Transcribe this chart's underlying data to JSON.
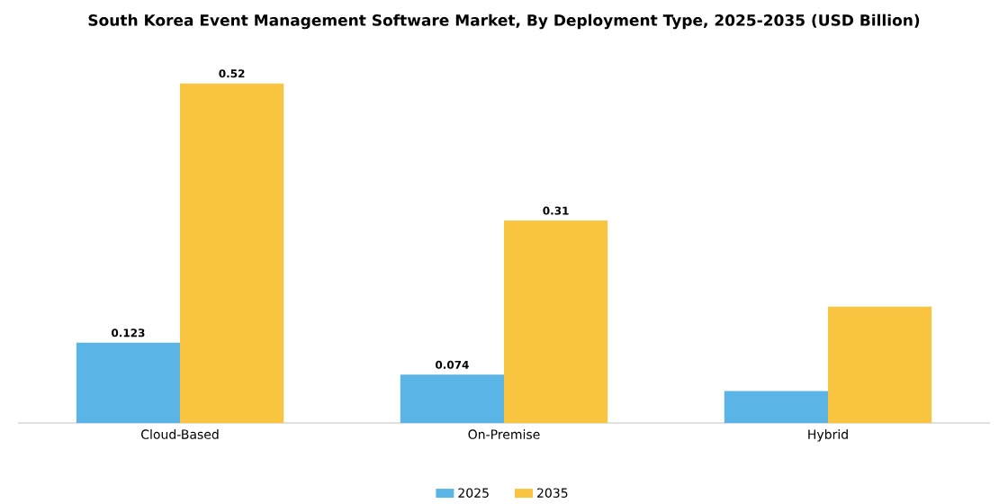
{
  "chart_data": {
    "type": "bar",
    "title": "South Korea Event Management Software Market, By Deployment Type, 2025-2035 (USD Billion)",
    "categories": [
      "Cloud-Based",
      "On-Premise",
      "Hybrid"
    ],
    "series": [
      {
        "name": "2025",
        "color": "#5ab4e5",
        "values": [
          0.123,
          0.074,
          0.049
        ],
        "value_labels": [
          "0.123",
          "0.074",
          null
        ]
      },
      {
        "name": "2035",
        "color": "#f9c440",
        "values": [
          0.52,
          0.31,
          0.178
        ],
        "value_labels": [
          "0.52",
          "0.31",
          null
        ]
      }
    ],
    "legend": "bottom"
  }
}
